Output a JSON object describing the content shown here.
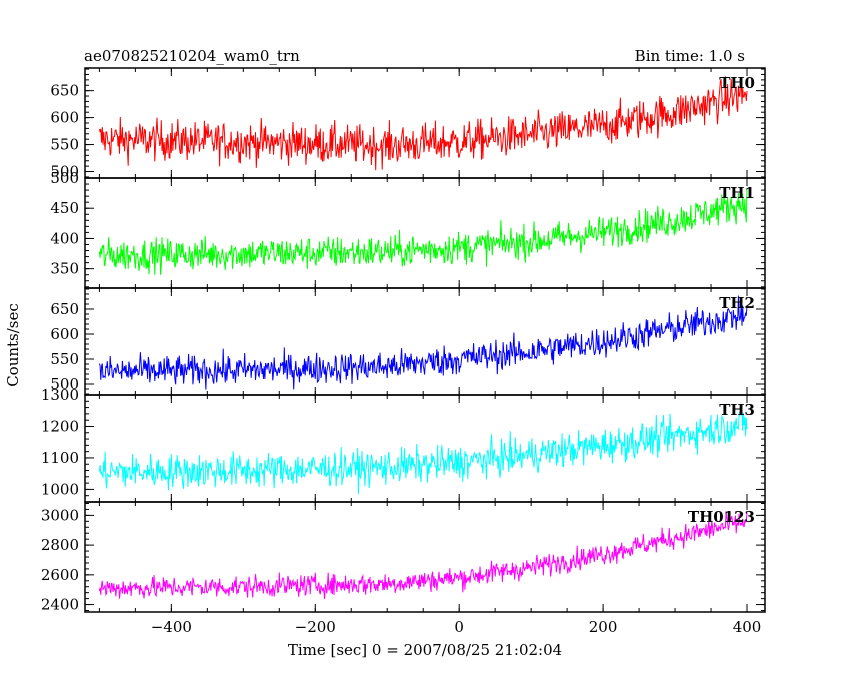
{
  "header": {
    "title": "ae070825210204_wam0_trn",
    "bin_time": "Bin time: 1.0 s"
  },
  "chart_data": {
    "type": "line",
    "xlabel": "Time [sec] 0 = 2007/08/25 21:02:04",
    "ylabel": "Counts/sec",
    "xlim": [
      -520,
      425
    ],
    "x_ticks": [
      -400,
      -200,
      0,
      200,
      400
    ],
    "x_range_data": [
      -500,
      400
    ],
    "panels": [
      {
        "name": "TH0",
        "color": "#ff0000",
        "ylim": [
          488,
          692
        ],
        "y_ticks": [
          500,
          550,
          600,
          650
        ],
        "trend": {
          "x": [
            -500,
            -300,
            -100,
            0,
            100,
            200,
            300,
            400
          ],
          "y": [
            560,
            555,
            548,
            555,
            568,
            585,
            610,
            645
          ]
        },
        "noise": 30
      },
      {
        "name": "TH1",
        "color": "#00ff00",
        "ylim": [
          318,
          500
        ],
        "y_ticks": [
          350,
          400,
          450,
          500
        ],
        "trend": {
          "x": [
            -500,
            -300,
            -100,
            0,
            100,
            200,
            300,
            400
          ],
          "y": [
            372,
            375,
            378,
            385,
            395,
            410,
            430,
            460
          ]
        },
        "noise": 22
      },
      {
        "name": "TH2",
        "color": "#0000ff",
        "ylim": [
          478,
          692
        ],
        "y_ticks": [
          500,
          550,
          600,
          650
        ],
        "trend": {
          "x": [
            -500,
            -300,
            -100,
            0,
            100,
            200,
            300,
            400
          ],
          "y": [
            525,
            528,
            535,
            550,
            565,
            585,
            612,
            640
          ]
        },
        "noise": 25
      },
      {
        "name": "TH3",
        "color": "#00ffff",
        "ylim": [
          960,
          1300
        ],
        "y_ticks": [
          1000,
          1100,
          1200,
          1300
        ],
        "trend": {
          "x": [
            -500,
            -300,
            -100,
            0,
            100,
            200,
            300,
            400
          ],
          "y": [
            1055,
            1060,
            1070,
            1085,
            1110,
            1140,
            1170,
            1210
          ]
        },
        "noise": 45
      },
      {
        "name": "TH0123",
        "color": "#ff00ff",
        "ylim": [
          2350,
          3090
        ],
        "y_ticks": [
          2400,
          2600,
          2800,
          3000
        ],
        "trend": {
          "x": [
            -500,
            -300,
            -100,
            0,
            100,
            200,
            300,
            400
          ],
          "y": [
            2510,
            2520,
            2540,
            2580,
            2650,
            2740,
            2850,
            2960
          ]
        },
        "noise": 60
      }
    ]
  }
}
